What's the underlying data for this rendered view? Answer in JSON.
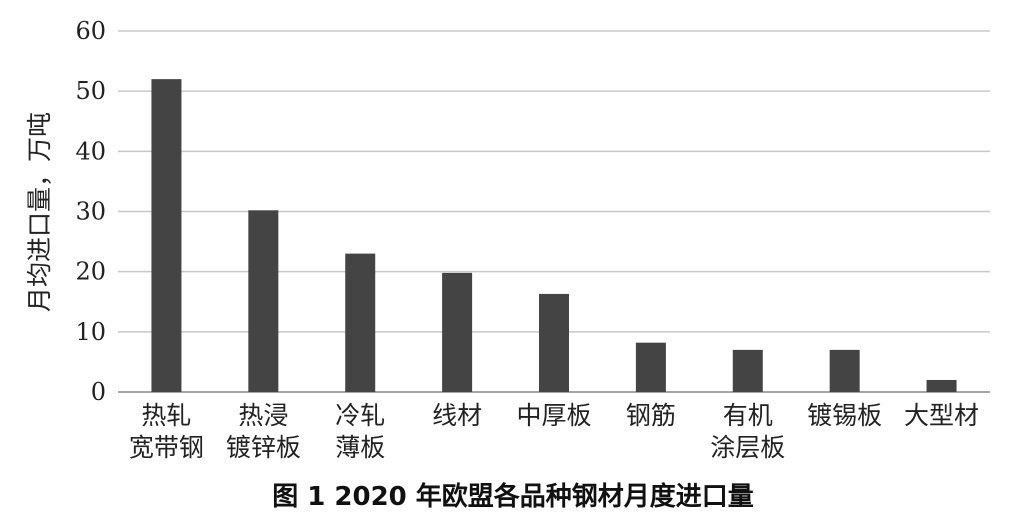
{
  "chart_data": {
    "type": "bar",
    "categories": [
      [
        "热轧",
        "宽带钢"
      ],
      [
        "热浸",
        "镀锌板"
      ],
      [
        "冷轧",
        "薄板"
      ],
      [
        "线材"
      ],
      [
        "中厚板"
      ],
      [
        "钢筋"
      ],
      [
        "有机",
        "涂层板"
      ],
      [
        "镀锡板"
      ],
      [
        "大型材"
      ]
    ],
    "values": [
      52,
      30.2,
      23,
      19.8,
      16.3,
      8.2,
      7,
      7,
      2
    ],
    "ylabel": "月均进口量，万吨",
    "caption": "图 1  2020 年欧盟各品种钢材月度进口量",
    "ylim": [
      0,
      60
    ],
    "yticks": [
      0,
      10,
      20,
      30,
      40,
      50,
      60
    ],
    "grid": true,
    "bar_color": "#444444"
  }
}
